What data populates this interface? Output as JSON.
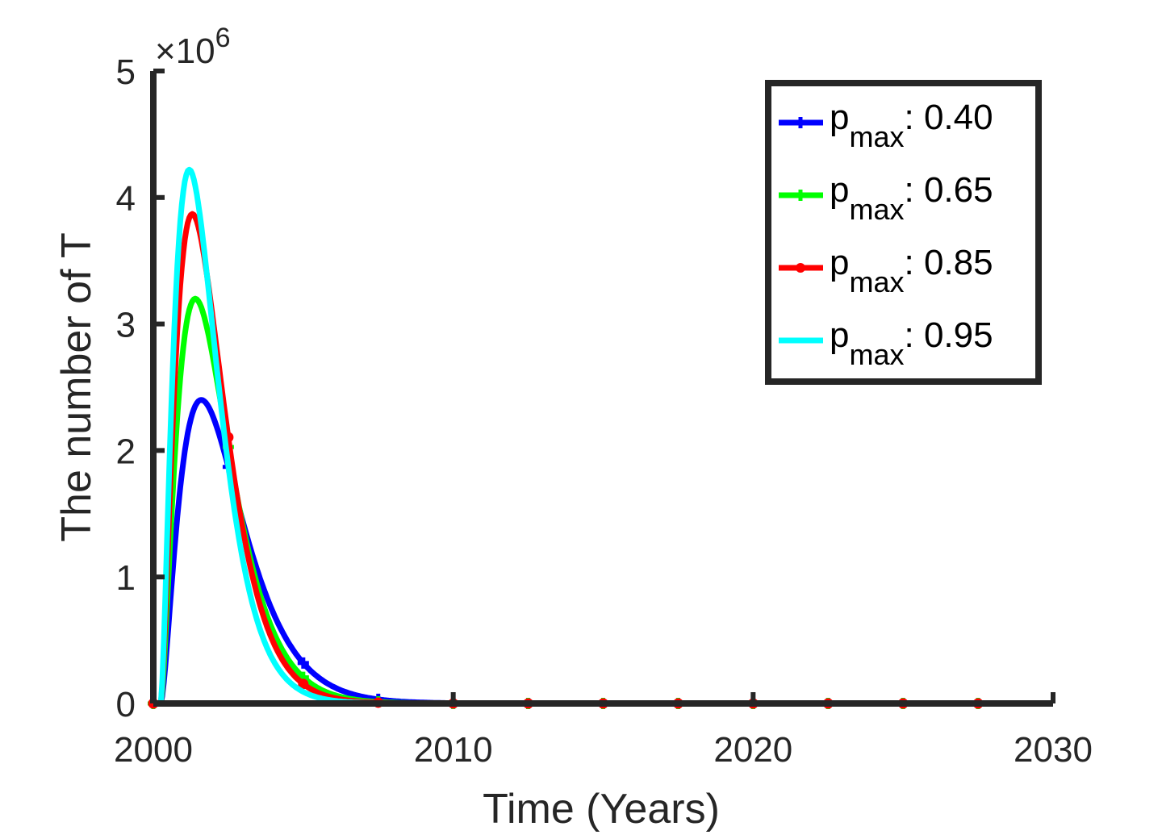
{
  "chart_data": {
    "type": "line",
    "title": "",
    "xlabel": "Time (Years)",
    "ylabel": "The number of T",
    "xlim": [
      2000,
      2030
    ],
    "ylim": [
      0,
      5
    ],
    "y_multiplier": "×10",
    "y_multiplier_exponent": "6",
    "xticks": [
      "2000",
      "2010",
      "2020",
      "2030"
    ],
    "yticks": [
      "0",
      "1",
      "2",
      "3",
      "4",
      "5"
    ],
    "legend_position": "top-right",
    "curve_end_x": 2029,
    "marker_x": [
      2000,
      2002.5,
      2005,
      2007.5,
      2010,
      2012.5,
      2015,
      2017.5,
      2020,
      2022.5,
      2025,
      2027.5
    ],
    "series": [
      {
        "name": "0.40",
        "legend_prefix": "p",
        "legend_sub": "max",
        "legend_sep": ": ",
        "color": "#0000FF",
        "marker": "+",
        "peak_x": 2001.6,
        "peak_y": 2.4,
        "decay_rate": 0.55
      },
      {
        "name": "0.65",
        "legend_prefix": "p",
        "legend_sub": "max",
        "legend_sep": ": ",
        "color": "#00FF00",
        "marker": "+",
        "peak_x": 2001.4,
        "peak_y": 3.2,
        "decay_rate": 0.6
      },
      {
        "name": "0.85",
        "legend_prefix": "p",
        "legend_sub": "max",
        "legend_sep": ": ",
        "color": "#FF0000",
        "marker": "o",
        "peak_x": 2001.3,
        "peak_y": 3.87,
        "decay_rate": 0.62
      },
      {
        "name": "0.95",
        "legend_prefix": "p",
        "legend_sub": "max",
        "legend_sep": ": ",
        "color": "#00FFFF",
        "marker": "none",
        "peak_x": 2001.2,
        "peak_y": 4.22,
        "decay_rate": 0.64
      }
    ]
  }
}
